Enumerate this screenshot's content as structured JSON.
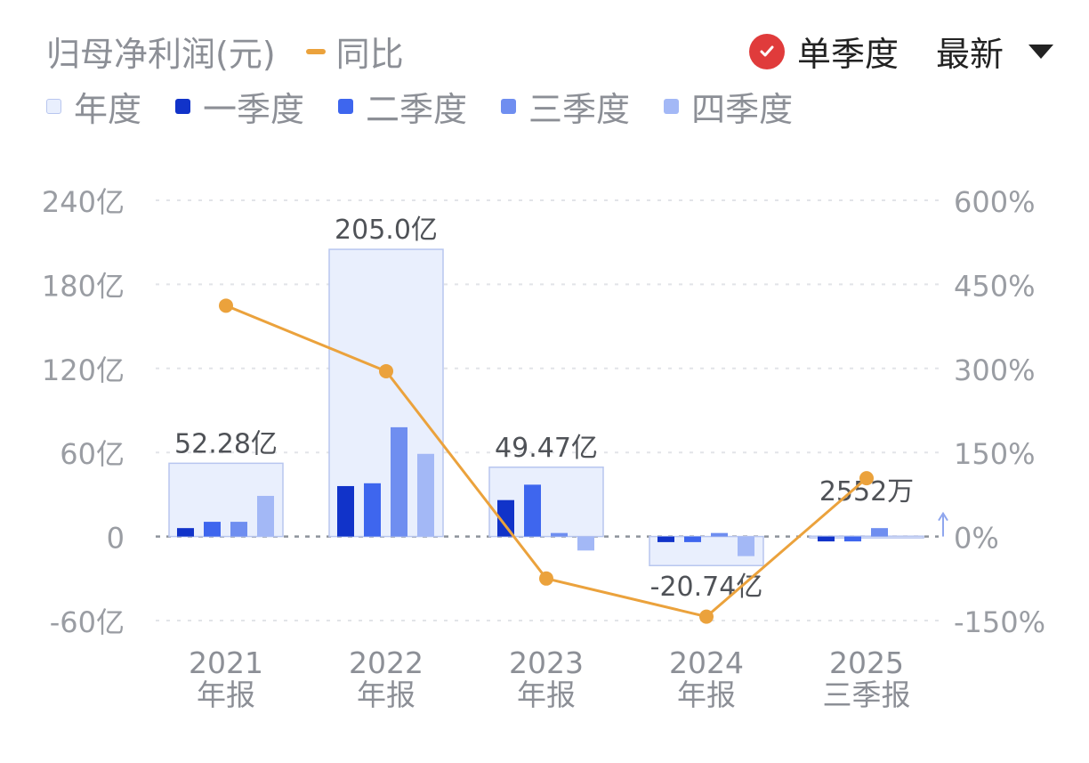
{
  "header": {
    "metric_label": "归母净利润(元)",
    "yoy_label": "同比",
    "single_quarter_label": "单季度",
    "latest_label": "最新"
  },
  "legend": [
    {
      "label": "年度",
      "color": "#e9effd",
      "border": "#b8c6ef"
    },
    {
      "label": "一季度",
      "color": "#1133c9"
    },
    {
      "label": "二季度",
      "color": "#3e66ee"
    },
    {
      "label": "三季度",
      "color": "#6f8ef0"
    },
    {
      "label": "四季度",
      "color": "#a3b8f6"
    }
  ],
  "chart_data": {
    "type": "bar",
    "categories": [
      [
        "2021",
        "年报"
      ],
      [
        "2022",
        "年报"
      ],
      [
        "2023",
        "年报"
      ],
      [
        "2024",
        "年报"
      ],
      [
        "2025",
        "三季报"
      ]
    ],
    "annual": [
      52.28,
      205.0,
      49.47,
      -20.74,
      0.2552
    ],
    "annual_labels": [
      "52.28亿",
      "205.0亿",
      "49.47亿",
      "-20.74亿",
      "2552万"
    ],
    "quarters": [
      [
        6,
        10.5,
        10.5,
        29
      ],
      [
        36,
        38,
        78,
        59
      ],
      [
        26,
        37,
        2.5,
        -10
      ],
      [
        -4,
        -4,
        2.5,
        -14
      ],
      [
        -3.5,
        -3.5,
        6,
        0
      ]
    ],
    "yoy_percent": [
      412,
      295,
      -75,
      -143,
      104
    ],
    "y_left": {
      "ticks": [
        240,
        180,
        120,
        60,
        0,
        -60
      ],
      "tick_labels": [
        "240亿",
        "180亿",
        "120亿",
        "60亿",
        "0",
        "-60亿"
      ],
      "range": [
        -60,
        240
      ]
    },
    "y_right": {
      "ticks": [
        600,
        450,
        300,
        150,
        0,
        -150
      ],
      "tick_labels": [
        "600%",
        "450%",
        "300%",
        "150%",
        "0%",
        "-150%"
      ],
      "range": [
        -150,
        600
      ]
    },
    "line_color": "#eba23c",
    "grid": true
  }
}
